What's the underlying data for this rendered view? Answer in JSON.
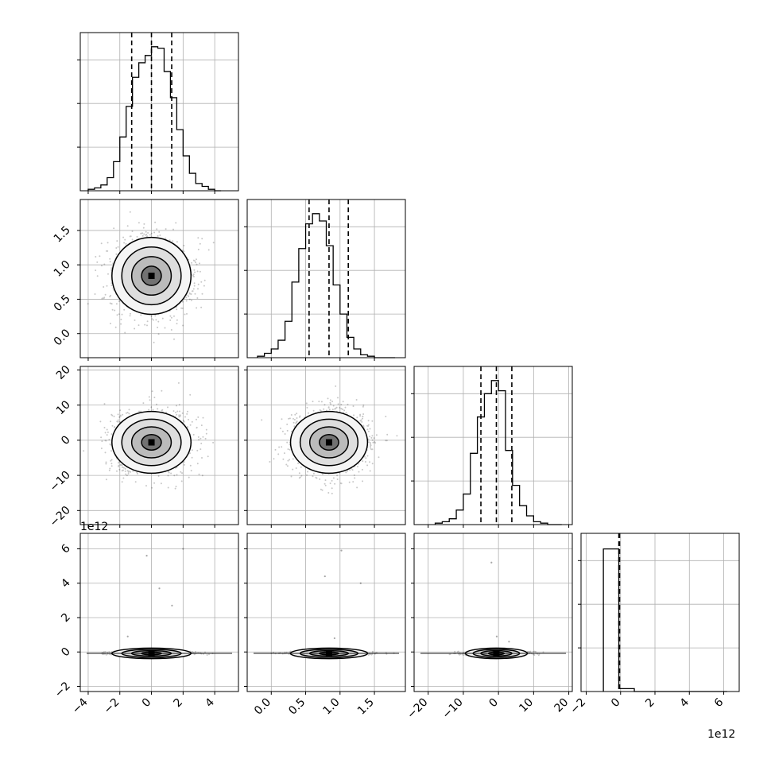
{
  "chart_data": {
    "type": "corner",
    "title": "",
    "n_params": 4,
    "offset_text": {
      "row3_y": "1e12",
      "col3_x": "1e12"
    },
    "params": [
      {
        "xlim": [
          -4.5,
          5.5
        ],
        "ticks": [
          -4,
          -2,
          0,
          2,
          4
        ],
        "tick_labels": [
          "−4",
          "−2",
          "0",
          "2",
          "4"
        ],
        "quantiles": [
          -1.25,
          0.0,
          1.28
        ],
        "hist": {
          "start": -4.0,
          "width": 0.4,
          "counts": [
            0.01,
            0.02,
            0.04,
            0.09,
            0.2,
            0.37,
            0.58,
            0.78,
            0.88,
            0.93,
            0.99,
            0.98,
            0.82,
            0.64,
            0.42,
            0.24,
            0.12,
            0.05,
            0.03,
            0.01,
            0.0
          ]
        },
        "center": 0.0,
        "sd": 1.25
      },
      {
        "xlim": [
          -0.35,
          1.95
        ],
        "ticks": [
          0.0,
          0.5,
          1.0,
          1.5
        ],
        "tick_labels": [
          "0.0",
          "0.5",
          "1.0",
          "1.5"
        ],
        "quantiles": [
          0.55,
          0.84,
          1.12
        ],
        "hist": {
          "start": -0.2,
          "width": 0.1,
          "counts": [
            0.01,
            0.03,
            0.06,
            0.12,
            0.25,
            0.52,
            0.75,
            0.92,
            0.99,
            0.94,
            0.77,
            0.5,
            0.3,
            0.14,
            0.06,
            0.02,
            0.01,
            0.0,
            0.0,
            0.0
          ]
        },
        "center": 0.84,
        "sd": 0.28
      },
      {
        "xlim": [
          -24,
          21
        ],
        "ticks": [
          -20,
          -10,
          0,
          10,
          20
        ],
        "tick_labels": [
          "−20",
          "−10",
          "0",
          "10",
          "20"
        ],
        "quantiles": [
          -5.0,
          -0.6,
          3.8
        ],
        "hist": {
          "start": -18.0,
          "width": 2.0,
          "counts": [
            0.01,
            0.02,
            0.04,
            0.1,
            0.21,
            0.49,
            0.74,
            0.9,
            0.99,
            0.92,
            0.51,
            0.27,
            0.13,
            0.06,
            0.02,
            0.01,
            0.0,
            0.0
          ]
        },
        "center": -0.6,
        "sd": 4.4
      },
      {
        "xlim": [
          -2.3,
          6.9
        ],
        "ticks": [
          -2,
          0,
          2,
          4,
          6
        ],
        "tick_labels": [
          "−2",
          "0",
          "2",
          "4",
          "6"
        ],
        "quantiles": [
          -0.1,
          -0.08,
          -0.06
        ],
        "hist": {
          "start": -1.0,
          "width": 0.9,
          "counts": [
            0.98,
            0.02,
            0.0,
            0.0,
            0.0,
            0.0,
            0.0,
            0.0
          ]
        },
        "center": -0.08,
        "sd": 0.05
      }
    ],
    "ylims": [
      null,
      [
        -0.35,
        1.95
      ],
      [
        -24,
        21
      ],
      [
        -2.3,
        6.9
      ]
    ],
    "yticks": [
      null,
      {
        "ticks": [
          0.0,
          0.5,
          1.0,
          1.5
        ],
        "labels": [
          "0.0",
          "0.5",
          "1.0",
          "1.5"
        ]
      },
      {
        "ticks": [
          -20,
          -10,
          0,
          10,
          20
        ],
        "labels": [
          "−20",
          "−10",
          "0",
          "10",
          "20"
        ]
      },
      {
        "ticks": [
          -2,
          0,
          2,
          4,
          6
        ],
        "labels": [
          "−2",
          "0",
          "2",
          "4",
          "6"
        ]
      }
    ],
    "outliers_row3": [
      {
        "col": 0,
        "points": [
          [
            -0.3,
            5.6
          ],
          [
            0.5,
            3.7
          ],
          [
            1.3,
            2.7
          ],
          [
            2.0,
            6.0
          ],
          [
            -1.5,
            0.9
          ]
        ]
      },
      {
        "col": 1,
        "points": [
          [
            0.78,
            4.4
          ],
          [
            1.02,
            5.9
          ],
          [
            1.3,
            4.0
          ],
          [
            0.92,
            0.8
          ]
        ]
      },
      {
        "col": 2,
        "points": [
          [
            -2.0,
            5.2
          ],
          [
            -0.5,
            0.9
          ],
          [
            3.0,
            0.6
          ]
        ]
      }
    ],
    "grid": true,
    "legend": "none"
  }
}
